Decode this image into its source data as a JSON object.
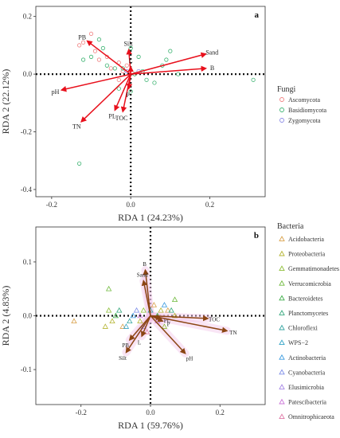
{
  "chart_data": [
    {
      "type": "scatter",
      "panel_label": "a",
      "xlabel": "RDA 1 (24.23%)",
      "ylabel": "RDA 2 (22.12%)",
      "xlim": [
        -0.24,
        0.34
      ],
      "ylim": [
        -0.425,
        0.235
      ],
      "x_ticks": [
        -0.2,
        0.0,
        0.2
      ],
      "y_ticks": [
        -0.4,
        -0.2,
        0.0,
        0.2
      ],
      "x_tick_labels": [
        "-0.2",
        "0.0",
        "0.2"
      ],
      "y_tick_labels": [
        "-0.4",
        "-0.2",
        "0.0",
        "0.2"
      ],
      "grid": false,
      "legend_title": "Fungi",
      "legend_position": "right",
      "series": [
        {
          "name": "Ascomycota",
          "color": "#f08080",
          "marker": "circle",
          "points": [
            [
              -0.13,
              0.1
            ],
            [
              -0.12,
              0.11
            ],
            [
              -0.1,
              0.14
            ],
            [
              -0.09,
              0.08
            ],
            [
              -0.08,
              0.05
            ],
            [
              -0.06,
              0.06
            ],
            [
              -0.05,
              0.02
            ],
            [
              -0.03,
              0.04
            ],
            [
              -0.02,
              0.01
            ],
            [
              -0.01,
              0.03
            ],
            [
              0.01,
              0.0
            ],
            [
              -0.03,
              -0.02
            ]
          ]
        },
        {
          "name": "Basidiomycota",
          "color": "#3cb371",
          "marker": "circle",
          "points": [
            [
              -0.13,
              -0.31
            ],
            [
              0.31,
              -0.02
            ],
            [
              -0.12,
              0.05
            ],
            [
              -0.1,
              0.06
            ],
            [
              -0.08,
              0.12
            ],
            [
              -0.07,
              0.09
            ],
            [
              -0.06,
              0.03
            ],
            [
              -0.04,
              0.02
            ],
            [
              -0.02,
              0.02
            ],
            [
              0.0,
              0.09
            ],
            [
              0.01,
              0.0
            ],
            [
              0.02,
              0.06
            ],
            [
              0.03,
              0.01
            ],
            [
              0.04,
              -0.02
            ],
            [
              0.06,
              -0.03
            ],
            [
              0.08,
              0.03
            ],
            [
              0.09,
              0.05
            ],
            [
              0.1,
              0.08
            ],
            [
              0.12,
              0.0
            ],
            [
              -0.03,
              -0.05
            ],
            [
              0.0,
              -0.06
            ]
          ]
        },
        {
          "name": "Zygomycota",
          "color": "#8a8ae6",
          "marker": "circle",
          "points": [
            [
              -0.01,
              0.01
            ],
            [
              0.02,
              0.01
            ]
          ]
        }
      ],
      "arrows": [
        {
          "label": "PB",
          "x": -0.11,
          "y": 0.115
        },
        {
          "label": "Silt",
          "x": -0.005,
          "y": 0.085
        },
        {
          "label": "Sand",
          "x": 0.19,
          "y": 0.07
        },
        {
          "label": "B",
          "x": 0.19,
          "y": 0.02
        },
        {
          "label": "pH",
          "x": -0.175,
          "y": -0.055
        },
        {
          "label": "TN",
          "x": -0.125,
          "y": -0.165
        },
        {
          "label": "PL",
          "x": -0.04,
          "y": -0.125
        },
        {
          "label": "TOC",
          "x": -0.02,
          "y": -0.13
        },
        {
          "label": "P",
          "x": -0.005,
          "y": -0.05
        },
        {
          "label": "L",
          "x": 0.0,
          "y": 0.025
        }
      ],
      "arrow_color": "#e8101c"
    },
    {
      "type": "scatter",
      "panel_label": "b",
      "xlabel": "RDA 1 (59.76%)",
      "ylabel": "RDA 2 (4.83%)",
      "xlim": [
        -0.33,
        0.33
      ],
      "ylim": [
        -0.165,
        0.165
      ],
      "x_ticks": [
        -0.2,
        0.0,
        0.2
      ],
      "y_ticks": [
        -0.1,
        0.0,
        0.1
      ],
      "x_tick_labels": [
        "-0.2",
        "0.0",
        "0.2"
      ],
      "y_tick_labels": [
        "-0.1",
        "0.0",
        "0.1"
      ],
      "grid": false,
      "legend_title": "Bacteria",
      "legend_position": "right",
      "series": [
        {
          "name": "Acidobacteria",
          "color": "#d9a14a",
          "marker": "triangle",
          "points": [
            [
              -0.22,
              -0.01
            ],
            [
              -0.08,
              -0.02
            ],
            [
              0.01,
              0.02
            ],
            [
              0.05,
              0.01
            ]
          ]
        },
        {
          "name": "Proteobacteria",
          "color": "#b5b534",
          "marker": "triangle",
          "points": [
            [
              -0.13,
              -0.02
            ],
            [
              -0.11,
              -0.01
            ],
            [
              -0.03,
              -0.01
            ],
            [
              0.03,
              0.01
            ],
            [
              0.07,
              0.0
            ]
          ]
        },
        {
          "name": "Gemmatimonadetes",
          "color": "#8fbf3a",
          "marker": "triangle",
          "points": [
            [
              -0.12,
              0.01
            ],
            [
              -0.02,
              0.01
            ],
            [
              0.04,
              -0.02
            ]
          ]
        },
        {
          "name": "Verrucomicrobia",
          "color": "#6fba3c",
          "marker": "triangle",
          "points": [
            [
              -0.12,
              0.05
            ],
            [
              0.07,
              0.03
            ]
          ]
        },
        {
          "name": "Bacteroidetes",
          "color": "#3fae4a",
          "marker": "triangle",
          "points": [
            [
              -0.1,
              0.0
            ],
            [
              0.02,
              0.0
            ]
          ]
        },
        {
          "name": "Planctomycetes",
          "color": "#35a87c",
          "marker": "triangle",
          "points": [
            [
              -0.09,
              0.01
            ],
            [
              0.06,
              0.01
            ]
          ]
        },
        {
          "name": "Chloroflexi",
          "color": "#3aa7a3",
          "marker": "triangle",
          "points": [
            [
              -0.06,
              -0.01
            ],
            [
              0.0,
              0.01
            ]
          ]
        },
        {
          "name": "WPS−2",
          "color": "#36a5c8",
          "marker": "triangle",
          "points": [
            [
              -0.07,
              -0.02
            ]
          ]
        },
        {
          "name": "Actinobacteria",
          "color": "#3b9be0",
          "marker": "triangle",
          "points": [
            [
              -0.05,
              0.0
            ],
            [
              0.04,
              0.02
            ]
          ]
        },
        {
          "name": "Cyanobacteria",
          "color": "#7e8ee8",
          "marker": "triangle",
          "points": [
            [
              -0.04,
              0.01
            ]
          ]
        },
        {
          "name": "Elusimicrobia",
          "color": "#a585e6",
          "marker": "triangle",
          "points": [
            [
              -0.02,
              -0.02
            ]
          ]
        },
        {
          "name": "Patescibacteria",
          "color": "#cd79d9",
          "marker": "triangle",
          "points": [
            [
              -0.03,
              0.0
            ],
            [
              0.02,
              -0.01
            ]
          ]
        },
        {
          "name": "Omnitrophicaeota",
          "color": "#e07aa8",
          "marker": "triangle",
          "points": [
            [
              -0.01,
              -0.03
            ]
          ]
        }
      ],
      "arrows": [
        {
          "label": "B",
          "x": -0.015,
          "y": 0.085
        },
        {
          "label": "Sand",
          "x": -0.02,
          "y": 0.065
        },
        {
          "label": "PL",
          "x": 0.03,
          "y": -0.005
        },
        {
          "label": "P",
          "x": 0.035,
          "y": -0.01
        },
        {
          "label": "TOC",
          "x": 0.165,
          "y": -0.005
        },
        {
          "label": "TN",
          "x": 0.22,
          "y": -0.028
        },
        {
          "label": "PB",
          "x": -0.06,
          "y": -0.045
        },
        {
          "label": "L",
          "x": -0.025,
          "y": -0.038
        },
        {
          "label": "Silt",
          "x": -0.07,
          "y": -0.068
        },
        {
          "label": "pH",
          "x": 0.1,
          "y": -0.07
        }
      ],
      "arrow_color": "#8b4513",
      "shade_color": "#f2c6ea"
    }
  ]
}
